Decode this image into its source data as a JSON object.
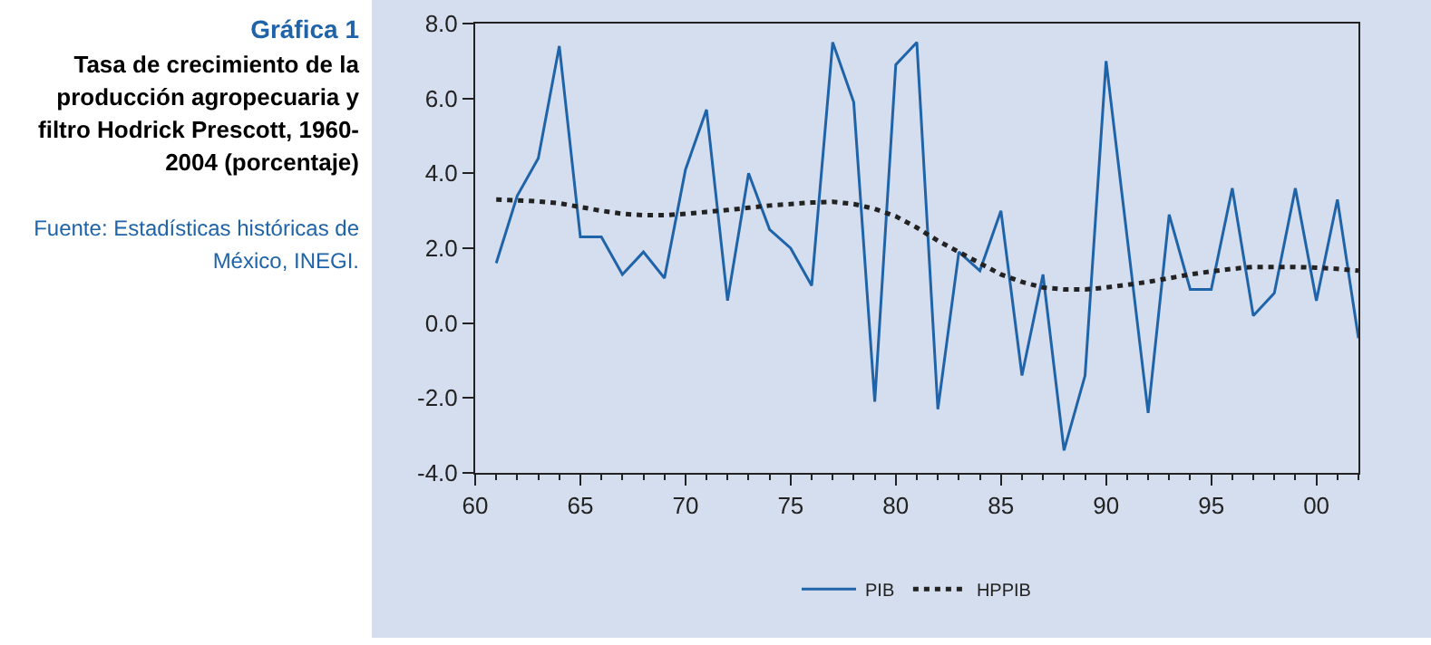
{
  "chart_data": {
    "type": "line",
    "title": "Gráfica 1",
    "subtitle": "Tasa de crecimiento de la producción agropecuaria y filtro Hodrick Prescott, 1960-2004 (porcentaje)",
    "annotations": [
      "Fuente: Estadísticas históricas de México, INEGI."
    ],
    "x": [
      1961,
      1962,
      1963,
      1964,
      1965,
      1966,
      1967,
      1968,
      1969,
      1970,
      1971,
      1972,
      1973,
      1974,
      1975,
      1976,
      1977,
      1978,
      1979,
      1980,
      1981,
      1982,
      1983,
      1984,
      1985,
      1986,
      1987,
      1988,
      1989,
      1990,
      1991,
      1992,
      1993,
      1994,
      1995,
      1996,
      1997,
      1998,
      1999,
      2000,
      2001,
      2002
    ],
    "series": [
      {
        "name": "PIB",
        "color": "#1f63a8",
        "line_style": "solid",
        "values": [
          1.6,
          3.4,
          4.4,
          7.4,
          2.3,
          2.3,
          1.3,
          1.9,
          1.2,
          4.1,
          5.7,
          0.6,
          4.0,
          2.5,
          2.0,
          1.0,
          7.5,
          5.9,
          -2.1,
          6.9,
          7.5,
          -2.3,
          1.9,
          1.4,
          3.0,
          -1.4,
          1.3,
          -3.4,
          -1.4,
          7.0,
          2.3,
          -2.4,
          2.9,
          0.9,
          0.9,
          3.6,
          0.2,
          0.8,
          3.6,
          0.6,
          3.3,
          -0.4
        ]
      },
      {
        "name": "HPPIB",
        "color": "#222222",
        "line_style": "dotted",
        "values": [
          3.3,
          3.28,
          3.25,
          3.2,
          3.1,
          3.0,
          2.92,
          2.88,
          2.88,
          2.92,
          2.97,
          3.02,
          3.08,
          3.14,
          3.18,
          3.22,
          3.24,
          3.18,
          3.05,
          2.85,
          2.55,
          2.2,
          1.9,
          1.6,
          1.3,
          1.1,
          0.95,
          0.9,
          0.9,
          0.95,
          1.02,
          1.1,
          1.2,
          1.3,
          1.38,
          1.45,
          1.5,
          1.5,
          1.5,
          1.48,
          1.45,
          1.4
        ]
      }
    ],
    "xlim": [
      1960,
      2002
    ],
    "xticks": [
      {
        "value": 1960,
        "label": "60"
      },
      {
        "value": 1965,
        "label": "65"
      },
      {
        "value": 1970,
        "label": "70"
      },
      {
        "value": 1975,
        "label": "75"
      },
      {
        "value": 1980,
        "label": "80"
      },
      {
        "value": 1985,
        "label": "85"
      },
      {
        "value": 1990,
        "label": "90"
      },
      {
        "value": 1995,
        "label": "95"
      },
      {
        "value": 2000,
        "label": "00"
      }
    ],
    "ylim": [
      -4,
      8
    ],
    "yticks": [
      {
        "value": -4,
        "label": "-4.0"
      },
      {
        "value": -2,
        "label": "-2.0"
      },
      {
        "value": 0,
        "label": "0.0"
      },
      {
        "value": 2,
        "label": "2.0"
      },
      {
        "value": 4,
        "label": "4.0"
      },
      {
        "value": 6,
        "label": "6.0"
      },
      {
        "value": 8,
        "label": "8.0"
      }
    ],
    "grid": false,
    "legend": "bottom",
    "marker": "none"
  }
}
